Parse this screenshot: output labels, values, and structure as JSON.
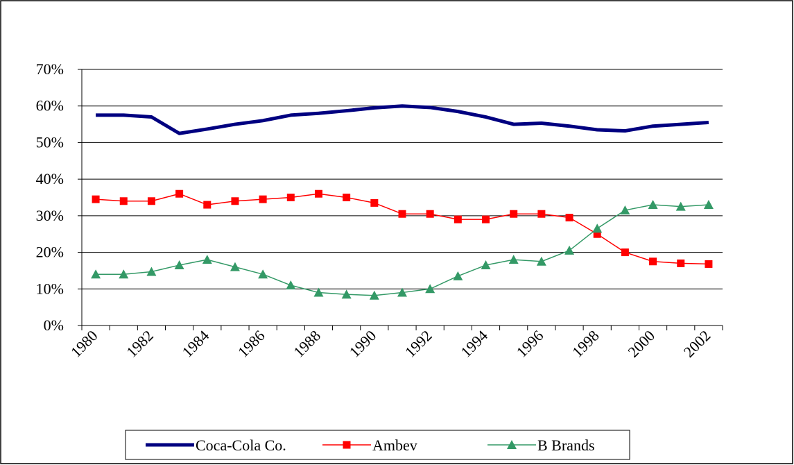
{
  "chart_data": {
    "type": "line",
    "categories": [
      "1980",
      null,
      "1982",
      null,
      "1984",
      null,
      "1986",
      null,
      "1988",
      null,
      "1990",
      null,
      "1992",
      null,
      "1994",
      null,
      "1996",
      null,
      "1998",
      null,
      "2000",
      null,
      "2002"
    ],
    "series": [
      {
        "name": "Coca-Cola Co.",
        "color": "#000080",
        "marker": "none",
        "values": [
          57.5,
          57.5,
          57,
          52.5,
          53.7,
          55,
          56,
          57.5,
          58,
          58.7,
          59.5,
          60,
          59.6,
          58.5,
          57,
          55,
          55.3,
          54.5,
          53.5,
          53.2,
          54.5,
          55,
          55.5
        ]
      },
      {
        "name": "Ambev",
        "color": "#ff0000",
        "marker": "square",
        "values": [
          34.5,
          34,
          34,
          36,
          33,
          34,
          34.5,
          35,
          36,
          35,
          33.5,
          30.5,
          30.5,
          29,
          29,
          30.5,
          30.5,
          29.5,
          25,
          20,
          17.5,
          17,
          16.8
        ]
      },
      {
        "name": "B Brands",
        "color": "#339966",
        "marker": "triangle",
        "values": [
          14,
          14,
          14.7,
          16.5,
          18,
          16,
          14,
          11,
          9,
          8.5,
          8.2,
          9,
          10,
          13.5,
          16.5,
          18,
          17.5,
          20.5,
          26.5,
          31.5,
          33,
          32.5,
          33
        ]
      }
    ],
    "ylim": [
      0,
      70
    ],
    "yticks": [
      {
        "value": 0,
        "label": "0%"
      },
      {
        "value": 10,
        "label": "10%"
      },
      {
        "value": 20,
        "label": "20%"
      },
      {
        "value": 30,
        "label": "30%"
      },
      {
        "value": 40,
        "label": "40%"
      },
      {
        "value": 50,
        "label": "50%"
      },
      {
        "value": 60,
        "label": "60%"
      },
      {
        "value": 70,
        "label": "70%"
      }
    ],
    "grid": true,
    "legend": "bottom"
  }
}
